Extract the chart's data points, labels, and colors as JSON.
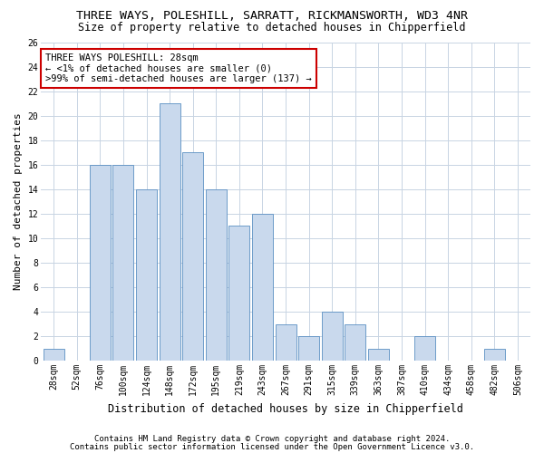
{
  "title1": "THREE WAYS, POLESHILL, SARRATT, RICKMANSWORTH, WD3 4NR",
  "title2": "Size of property relative to detached houses in Chipperfield",
  "xlabel": "Distribution of detached houses by size in Chipperfield",
  "ylabel": "Number of detached properties",
  "categories": [
    "28sqm",
    "52sqm",
    "76sqm",
    "100sqm",
    "124sqm",
    "148sqm",
    "172sqm",
    "195sqm",
    "219sqm",
    "243sqm",
    "267sqm",
    "291sqm",
    "315sqm",
    "339sqm",
    "363sqm",
    "387sqm",
    "410sqm",
    "434sqm",
    "458sqm",
    "482sqm",
    "506sqm"
  ],
  "values": [
    1,
    0,
    16,
    16,
    14,
    21,
    17,
    14,
    11,
    12,
    3,
    2,
    4,
    3,
    1,
    0,
    2,
    0,
    0,
    1,
    0
  ],
  "bar_color": "#c9d9ed",
  "bar_edge_color": "#5a8fc2",
  "annotation_line1": "THREE WAYS POLESHILL: 28sqm",
  "annotation_line2": "← <1% of detached houses are smaller (0)",
  "annotation_line3": ">99% of semi-detached houses are larger (137) →",
  "annotation_box_color": "#ffffff",
  "annotation_box_edge_color": "#cc0000",
  "ylim": [
    0,
    26
  ],
  "yticks": [
    0,
    2,
    4,
    6,
    8,
    10,
    12,
    14,
    16,
    18,
    20,
    22,
    24,
    26
  ],
  "grid_color": "#c8d4e3",
  "background_color": "#ffffff",
  "footer1": "Contains HM Land Registry data © Crown copyright and database right 2024.",
  "footer2": "Contains public sector information licensed under the Open Government Licence v3.0.",
  "title1_fontsize": 9.5,
  "title2_fontsize": 8.5,
  "xlabel_fontsize": 8.5,
  "ylabel_fontsize": 8,
  "tick_fontsize": 7,
  "annotation_fontsize": 7.5,
  "footer_fontsize": 6.5
}
